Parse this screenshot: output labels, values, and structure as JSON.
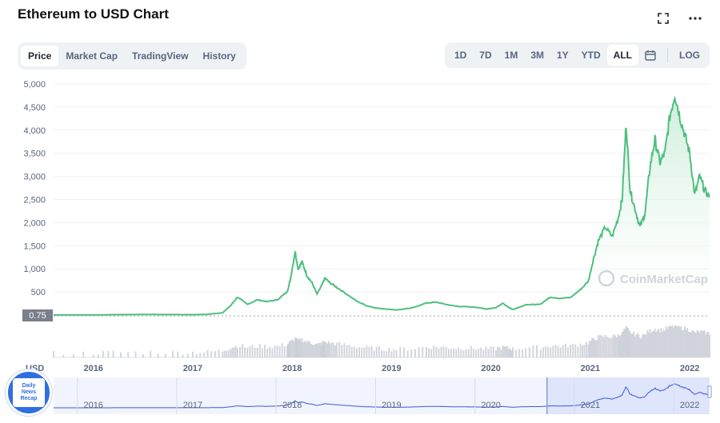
{
  "header": {
    "title": "Ethereum to USD Chart",
    "fullscreen_icon": "fullscreen-icon",
    "more_icon": "more-icon"
  },
  "tabs": [
    {
      "label": "Price",
      "active": true
    },
    {
      "label": "Market Cap",
      "active": false
    },
    {
      "label": "TradingView",
      "active": false
    },
    {
      "label": "History",
      "active": false
    }
  ],
  "ranges": [
    {
      "label": "1D",
      "active": false
    },
    {
      "label": "7D",
      "active": false
    },
    {
      "label": "1M",
      "active": false
    },
    {
      "label": "3M",
      "active": false
    },
    {
      "label": "1Y",
      "active": false
    },
    {
      "label": "YTD",
      "active": false
    },
    {
      "label": "ALL",
      "active": true
    }
  ],
  "log_label": "LOG",
  "calendar_icon": "calendar-icon",
  "watermark": "CoinMarketCap",
  "badge": {
    "lines": [
      "Daily",
      "News",
      "Recap"
    ]
  },
  "colors": {
    "line": "#4fbf7f",
    "area_top": "#c9ecd8",
    "volume": "#c8ccd4",
    "navigator_fill": "#dfe5fb",
    "navigator_line": "#3b5bdb"
  },
  "chart_data": {
    "type": "line",
    "series_name": "Price",
    "currency_label": "USD",
    "current_price_label": "0.75",
    "y_ticks": [
      "5,000",
      "4,500",
      "4,000",
      "3,500",
      "3,000",
      "2,500",
      "2,000",
      "1,500",
      "1,000",
      "500"
    ],
    "y_tick_values": [
      5000,
      4500,
      4000,
      3500,
      3000,
      2500,
      2000,
      1500,
      1000,
      500
    ],
    "ylim": [
      0,
      5000
    ],
    "x_ticks": [
      "2016",
      "2017",
      "2018",
      "2019",
      "2020",
      "2021",
      "2022"
    ],
    "x_tick_values": [
      2016,
      2017,
      2018,
      2019,
      2020,
      2021,
      2022
    ],
    "xlim": [
      2015.6,
      2022.2
    ],
    "navigator_ticks": [
      "2016",
      "2017",
      "2018",
      "2019",
      "2020",
      "2021",
      "2022"
    ],
    "points": [
      [
        2015.6,
        1
      ],
      [
        2016.0,
        1
      ],
      [
        2016.2,
        8
      ],
      [
        2016.5,
        12
      ],
      [
        2016.8,
        10
      ],
      [
        2017.0,
        8
      ],
      [
        2017.15,
        15
      ],
      [
        2017.3,
        50
      ],
      [
        2017.38,
        200
      ],
      [
        2017.45,
        390
      ],
      [
        2017.55,
        230
      ],
      [
        2017.65,
        330
      ],
      [
        2017.75,
        290
      ],
      [
        2017.85,
        330
      ],
      [
        2017.95,
        500
      ],
      [
        2017.98,
        750
      ],
      [
        2018.03,
        1380
      ],
      [
        2018.06,
        1000
      ],
      [
        2018.1,
        1150
      ],
      [
        2018.15,
        850
      ],
      [
        2018.2,
        700
      ],
      [
        2018.25,
        450
      ],
      [
        2018.3,
        650
      ],
      [
        2018.33,
        800
      ],
      [
        2018.38,
        700
      ],
      [
        2018.45,
        600
      ],
      [
        2018.55,
        450
      ],
      [
        2018.65,
        300
      ],
      [
        2018.75,
        200
      ],
      [
        2018.85,
        150
      ],
      [
        2018.95,
        130
      ],
      [
        2019.05,
        110
      ],
      [
        2019.2,
        150
      ],
      [
        2019.35,
        260
      ],
      [
        2019.45,
        280
      ],
      [
        2019.55,
        230
      ],
      [
        2019.65,
        190
      ],
      [
        2019.75,
        180
      ],
      [
        2019.85,
        170
      ],
      [
        2019.95,
        130
      ],
      [
        2020.05,
        160
      ],
      [
        2020.12,
        260
      ],
      [
        2020.18,
        160
      ],
      [
        2020.22,
        120
      ],
      [
        2020.35,
        220
      ],
      [
        2020.5,
        240
      ],
      [
        2020.6,
        390
      ],
      [
        2020.7,
        360
      ],
      [
        2020.8,
        380
      ],
      [
        2020.9,
        550
      ],
      [
        2020.98,
        730
      ],
      [
        2021.03,
        1200
      ],
      [
        2021.08,
        1600
      ],
      [
        2021.15,
        1900
      ],
      [
        2021.22,
        1700
      ],
      [
        2021.28,
        2100
      ],
      [
        2021.32,
        2500
      ],
      [
        2021.36,
        4150
      ],
      [
        2021.4,
        2700
      ],
      [
        2021.45,
        2300
      ],
      [
        2021.5,
        1900
      ],
      [
        2021.55,
        2200
      ],
      [
        2021.6,
        3200
      ],
      [
        2021.65,
        3800
      ],
      [
        2021.7,
        3300
      ],
      [
        2021.75,
        3500
      ],
      [
        2021.8,
        4300
      ],
      [
        2021.85,
        4780
      ],
      [
        2021.9,
        4300
      ],
      [
        2021.95,
        3900
      ],
      [
        2022.0,
        3500
      ],
      [
        2022.05,
        2600
      ],
      [
        2022.1,
        3000
      ],
      [
        2022.15,
        2700
      ],
      [
        2022.2,
        2550
      ]
    ]
  }
}
